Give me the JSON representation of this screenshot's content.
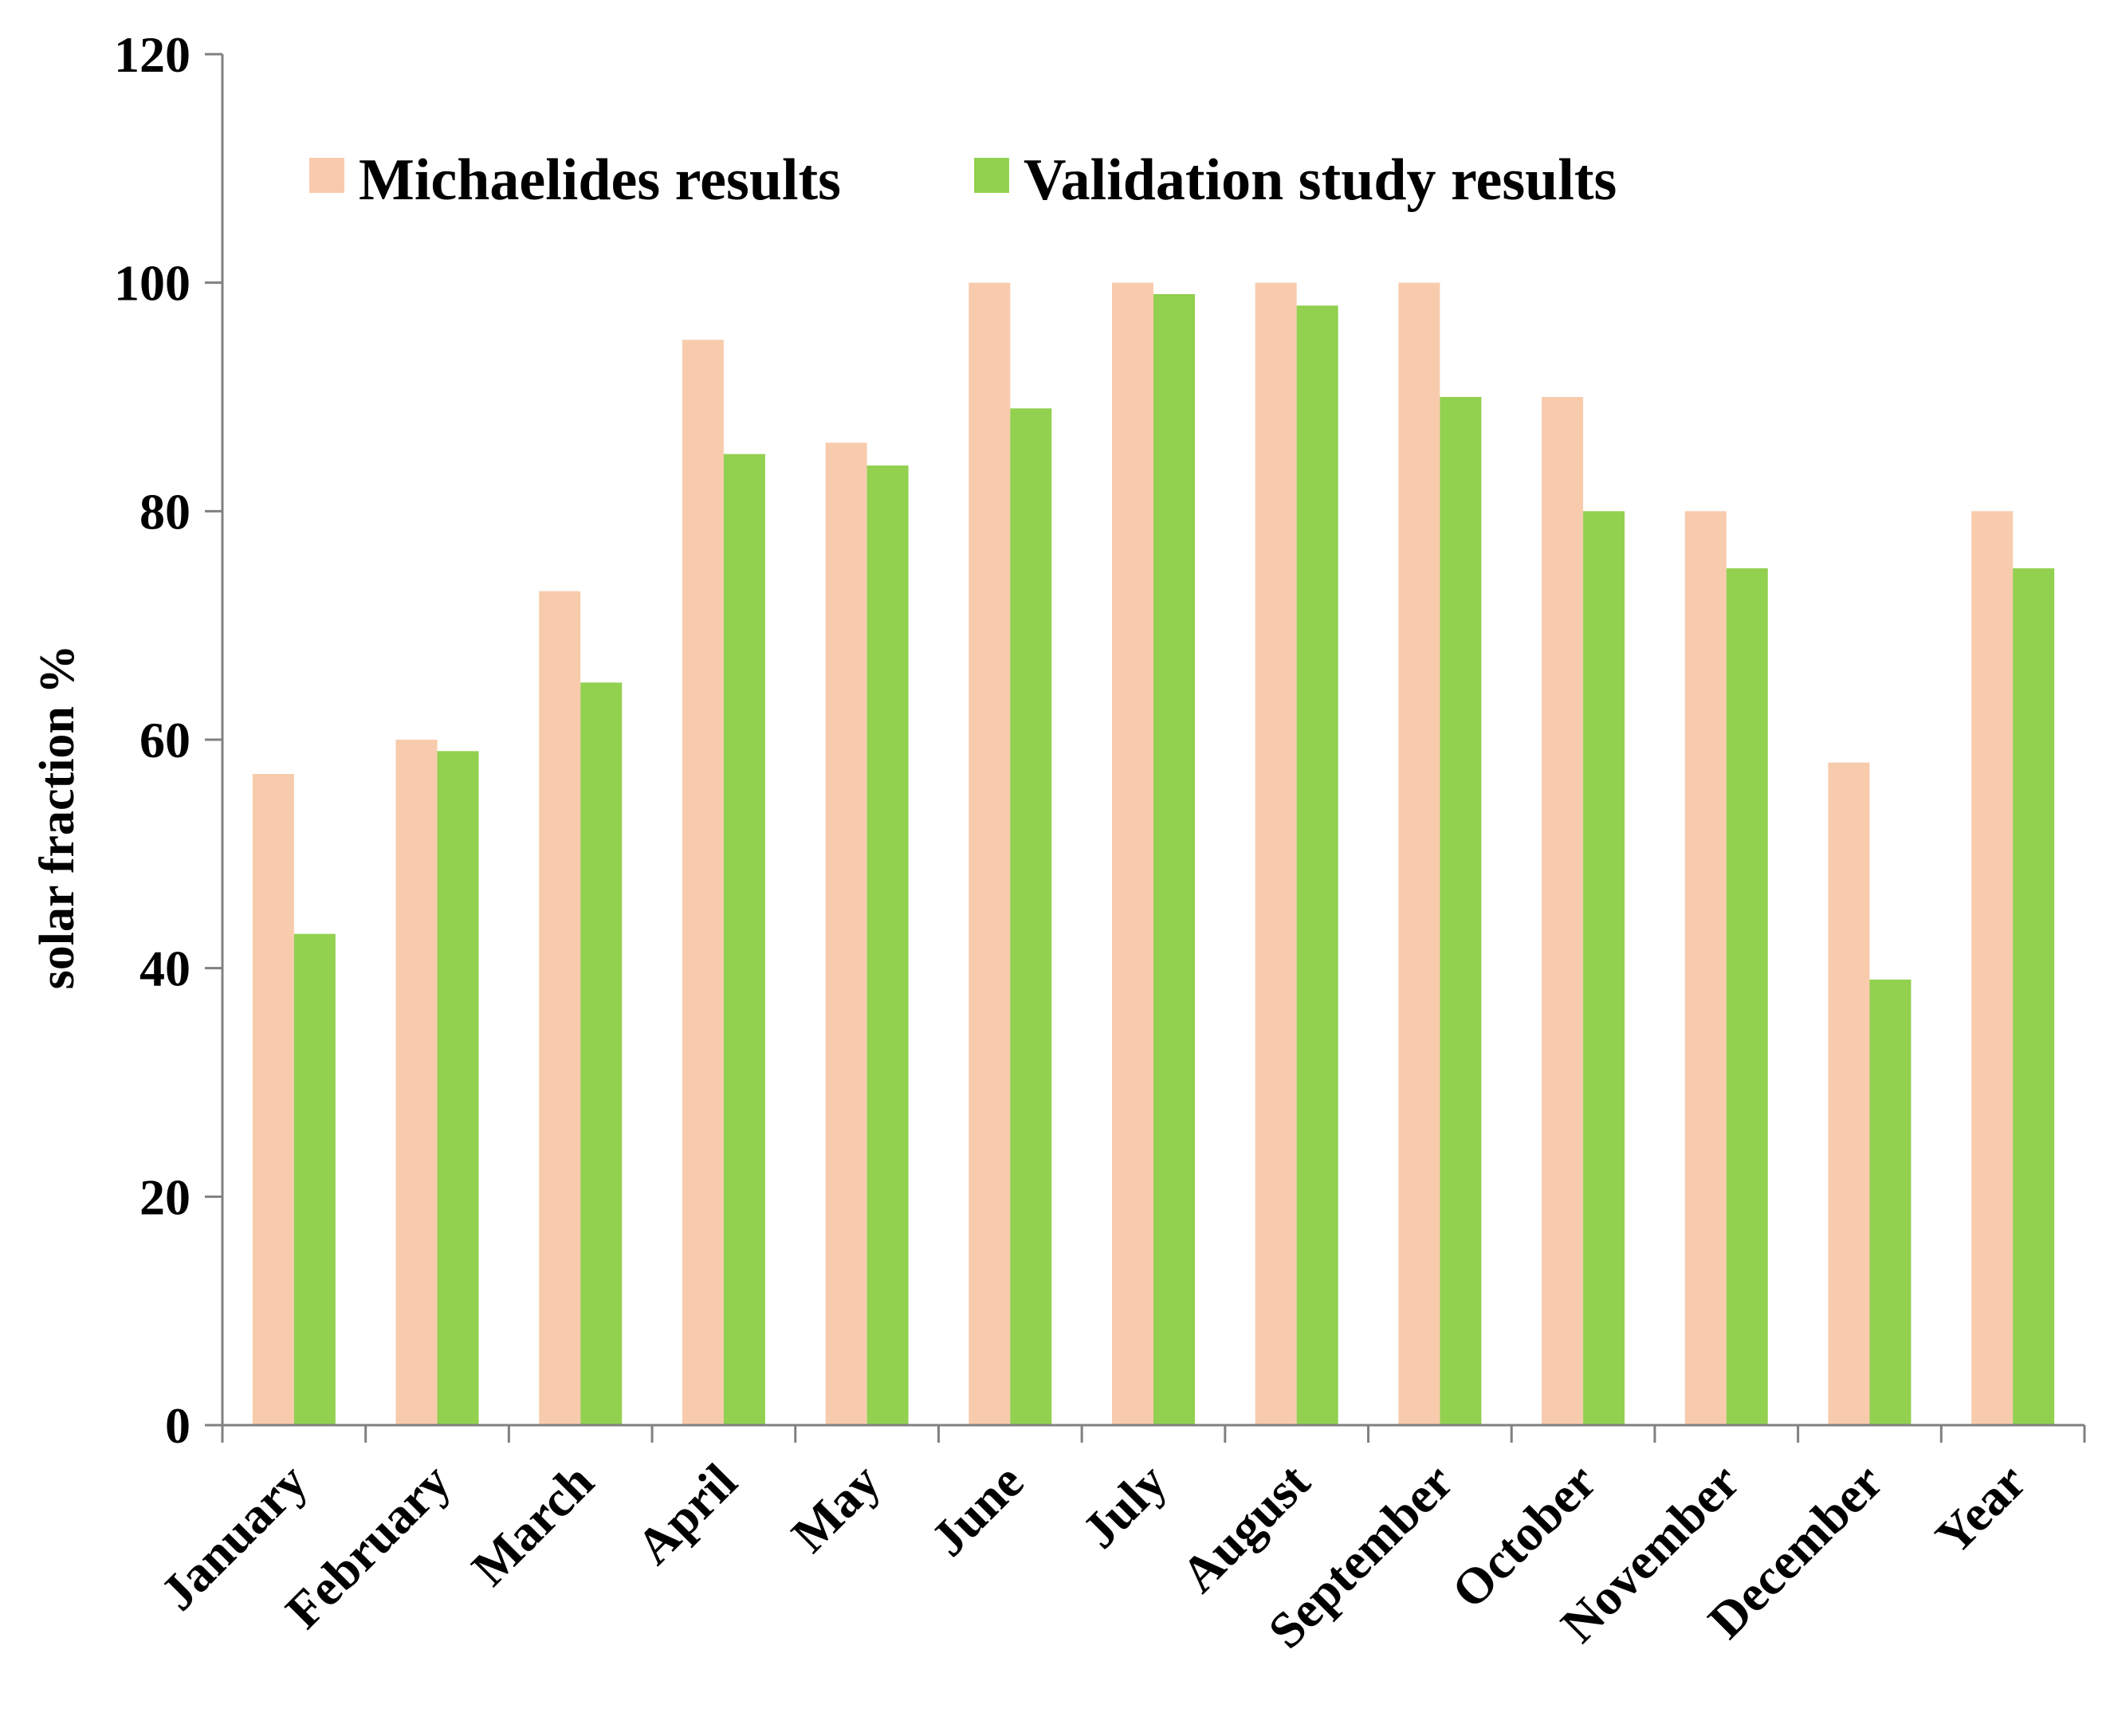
{
  "chart_data": {
    "type": "bar",
    "title": "",
    "xlabel": "",
    "ylabel": "solar fraction %",
    "ylim": [
      0,
      120
    ],
    "yticks": [
      0,
      20,
      40,
      60,
      80,
      100,
      120
    ],
    "grid": false,
    "legend_position": "top",
    "categories": [
      "January",
      "February",
      "March",
      "April",
      "May",
      "June",
      "July",
      "August",
      "September",
      "October",
      "November",
      "December",
      "Year"
    ],
    "series": [
      {
        "name": "Michaelides results",
        "color": "#F8CBAD",
        "values": [
          57,
          60,
          73,
          95,
          86,
          100,
          100,
          100,
          100,
          90,
          80,
          58,
          80
        ]
      },
      {
        "name": "Validation study results",
        "color": "#92D050",
        "values": [
          43,
          59,
          65,
          85,
          84,
          89,
          99,
          98,
          90,
          80,
          75,
          39,
          75
        ]
      }
    ],
    "axis_color": "#808080"
  }
}
